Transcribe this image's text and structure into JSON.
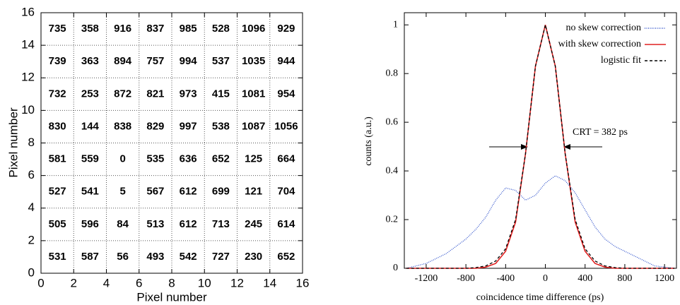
{
  "chart_data": [
    {
      "type": "heatmap",
      "xlabel": "Pixel number",
      "ylabel": "Pixel number",
      "xlim": [
        0,
        16
      ],
      "ylim": [
        0,
        16
      ],
      "xticks": [
        0,
        2,
        4,
        6,
        8,
        10,
        12,
        14,
        16
      ],
      "yticks": [
        0,
        2,
        4,
        6,
        8,
        10,
        12,
        14,
        16
      ],
      "grid": true,
      "values": [
        [
          735,
          358,
          916,
          837,
          985,
          528,
          1096,
          929
        ],
        [
          739,
          363,
          894,
          757,
          994,
          537,
          1035,
          944
        ],
        [
          732,
          253,
          872,
          821,
          973,
          415,
          1081,
          954
        ],
        [
          830,
          144,
          838,
          829,
          997,
          538,
          1087,
          1056
        ],
        [
          581,
          559,
          0,
          535,
          636,
          652,
          125,
          664
        ],
        [
          527,
          541,
          5,
          567,
          612,
          699,
          121,
          704
        ],
        [
          505,
          596,
          84,
          513,
          612,
          713,
          245,
          614
        ],
        [
          531,
          587,
          56,
          493,
          542,
          727,
          230,
          652
        ]
      ]
    },
    {
      "type": "line",
      "xlabel": "coincidence time difference (ps)",
      "ylabel": "counts (a.u.)",
      "xlim": [
        -1420,
        1320
      ],
      "ylim": [
        0,
        1.05
      ],
      "xticks": [
        -1200,
        -800,
        -400,
        0,
        400,
        800,
        1200
      ],
      "yticks": [
        0,
        0.2,
        0.4,
        0.6,
        0.8,
        1
      ],
      "legend": "top right",
      "annotation": "CRT = 382 ps",
      "x": [
        -1400,
        -1300,
        -1200,
        -1100,
        -1000,
        -900,
        -800,
        -700,
        -600,
        -500,
        -400,
        -300,
        -200,
        -100,
        0,
        100,
        200,
        300,
        400,
        500,
        600,
        700,
        800,
        900,
        1000,
        1100,
        1200,
        1300
      ],
      "series": [
        {
          "name": "no skew correction",
          "color": "#3355cc",
          "style": "dotted",
          "values": [
            0,
            0.01,
            0.02,
            0.04,
            0.06,
            0.09,
            0.12,
            0.16,
            0.21,
            0.28,
            0.33,
            0.32,
            0.28,
            0.3,
            0.35,
            0.38,
            0.36,
            0.31,
            0.24,
            0.17,
            0.12,
            0.09,
            0.07,
            0.05,
            0.03,
            0.01,
            0.005,
            0
          ]
        },
        {
          "name": "with skew correction",
          "color": "#e02020",
          "style": "solid",
          "values": [
            0,
            0,
            0,
            0,
            0,
            0,
            0,
            0,
            0.005,
            0.02,
            0.07,
            0.19,
            0.47,
            0.83,
            1,
            0.83,
            0.47,
            0.19,
            0.07,
            0.02,
            0.005,
            0,
            0,
            0,
            0,
            0,
            0,
            0
          ]
        },
        {
          "name": "logistic fit",
          "color": "#000000",
          "style": "dashed",
          "values": [
            0,
            0,
            0,
            0,
            0,
            0,
            0,
            0.003,
            0.01,
            0.03,
            0.08,
            0.2,
            0.47,
            0.83,
            1,
            0.83,
            0.47,
            0.2,
            0.08,
            0.03,
            0.01,
            0.003,
            0,
            0,
            0,
            0,
            0,
            0
          ]
        }
      ]
    }
  ]
}
